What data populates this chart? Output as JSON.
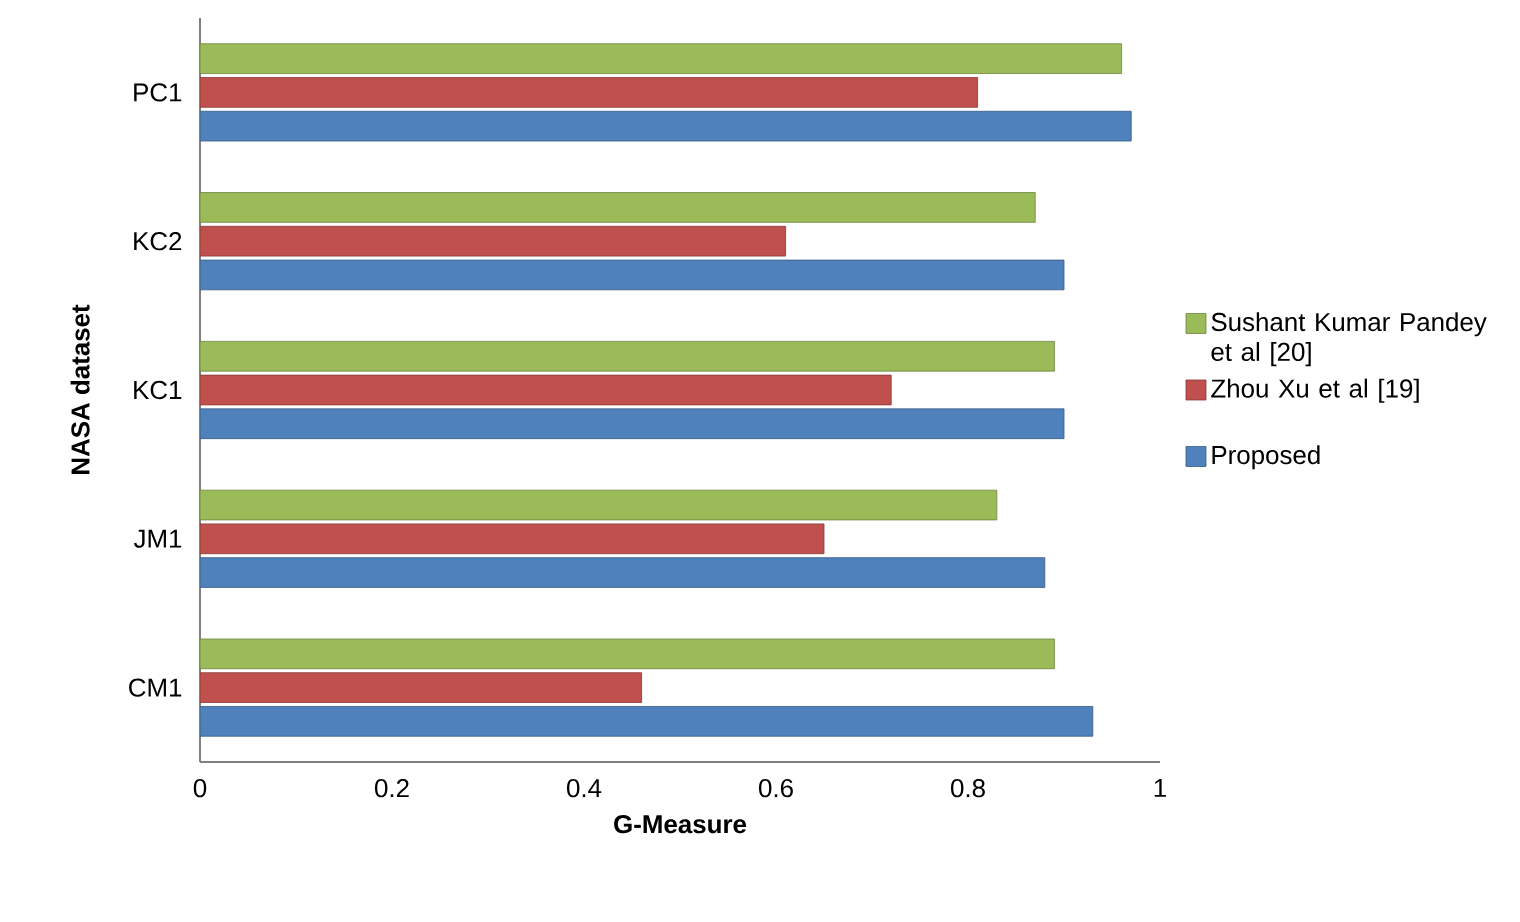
{
  "chart_data": {
    "type": "bar",
    "orientation": "horizontal",
    "xlabel": "G-Measure",
    "ylabel": "NASA dataset",
    "categories": [
      "PC1",
      "KC2",
      "KC1",
      "JM1",
      "CM1"
    ],
    "series": [
      {
        "name": "Proposed",
        "color": "#4f81bd",
        "values": [
          0.97,
          0.9,
          0.9,
          0.88,
          0.93
        ]
      },
      {
        "name": "Zhou Xu et al [19]",
        "color": "#c0504d",
        "values": [
          0.81,
          0.61,
          0.72,
          0.65,
          0.46
        ]
      },
      {
        "name": "Sushant Kumar Pandey et al [20]",
        "color": "#9bbb59",
        "values": [
          0.96,
          0.87,
          0.89,
          0.83,
          0.89
        ]
      }
    ],
    "xlim": [
      0,
      1
    ],
    "xticks": [
      0,
      0.2,
      0.4,
      0.6,
      0.8,
      1
    ],
    "legend": "right",
    "grid": false
  }
}
